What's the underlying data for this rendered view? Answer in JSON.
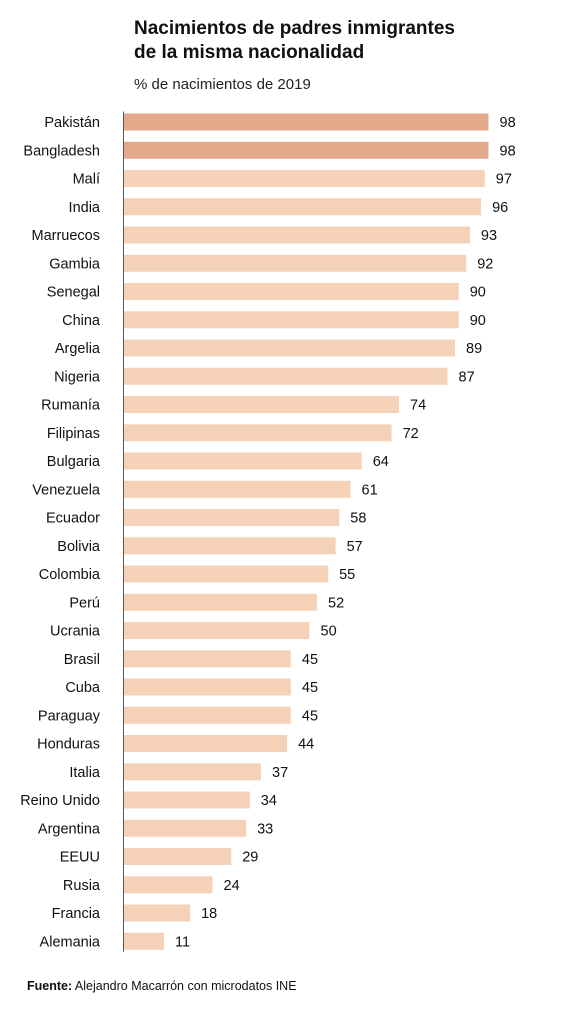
{
  "chart_data": {
    "type": "bar",
    "orientation": "horizontal",
    "title_lines": [
      "Nacimientos de padres inmigrantes",
      "de la misma nacionalidad"
    ],
    "subtitle": "% de nacimientos de 2019",
    "categories": [
      "Pakistán",
      "Bangladesh",
      "Malí",
      "India",
      "Marruecos",
      "Gambia",
      "Senegal",
      "China",
      "Argelia",
      "Nigeria",
      "Rumanía",
      "Filipinas",
      "Bulgaria",
      "Venezuela",
      "Ecuador",
      "Bolivia",
      "Colombia",
      "Perú",
      "Ucrania",
      "Brasil",
      "Cuba",
      "Paraguay",
      "Honduras",
      "Italia",
      "Reino Unido",
      "Argentina",
      "EEUU",
      "Rusia",
      "Francia",
      "Alemania"
    ],
    "values": [
      98,
      98,
      97,
      96,
      93,
      92,
      90,
      90,
      89,
      87,
      74,
      72,
      64,
      61,
      58,
      57,
      55,
      52,
      50,
      45,
      45,
      45,
      44,
      37,
      34,
      33,
      29,
      24,
      18,
      11
    ],
    "highlighted": [
      "Pakistán",
      "Bangladesh"
    ],
    "xlim": [
      0,
      100
    ],
    "grid": false,
    "colors": {
      "highlight": "#e2aa8a",
      "default": "#f5d2b7",
      "axis": "#555555",
      "text": "#111111"
    }
  },
  "source": {
    "label": "Fuente:",
    "text": " Alejandro Macarrón con microdatos INE"
  }
}
